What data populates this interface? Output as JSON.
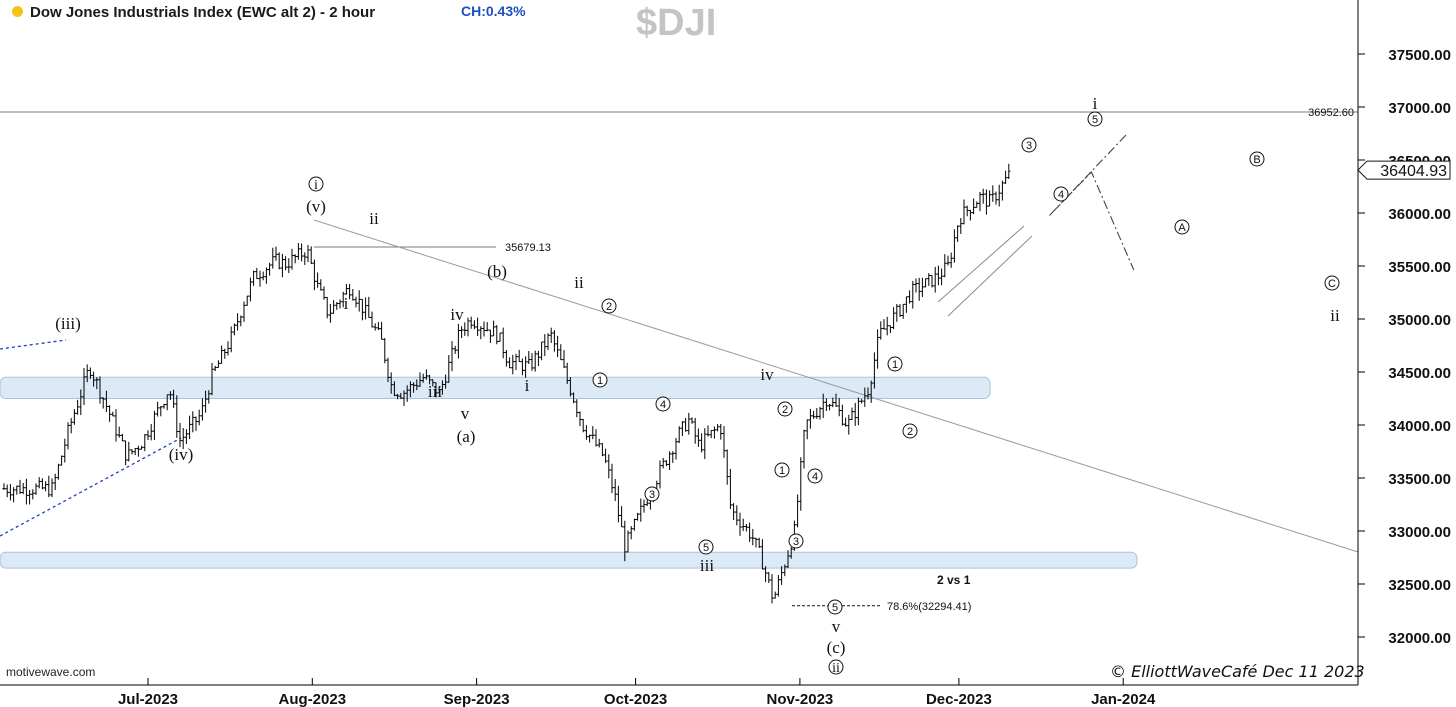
{
  "header": {
    "title": "Dow Jones Industrials Index (EWC alt 2) - 2 hour",
    "change": "CH:0.43%",
    "symbol": "$DJI",
    "dot_color": "#f5c21b"
  },
  "footer": {
    "source": "motivewave.com",
    "copyright": "ElliottWaveCafé Dec 11 2023"
  },
  "chart_data": {
    "type": "line",
    "style": "ohlc-bars",
    "x": [
      "2023-06-13",
      "2023-06-16",
      "2023-06-20",
      "2023-06-23",
      "2023-06-27",
      "2023-06-30",
      "2023-07-05",
      "2023-07-07",
      "2023-07-11",
      "2023-07-13",
      "2023-07-17",
      "2023-07-19",
      "2023-07-21",
      "2023-07-25",
      "2023-07-27",
      "2023-07-31",
      "2023-08-02",
      "2023-08-04",
      "2023-08-08",
      "2023-08-10",
      "2023-08-14",
      "2023-08-16",
      "2023-08-18",
      "2023-08-22",
      "2023-08-25",
      "2023-08-29",
      "2023-08-31",
      "2023-09-05",
      "2023-09-07",
      "2023-09-11",
      "2023-09-13",
      "2023-09-15",
      "2023-09-19",
      "2023-09-21",
      "2023-09-25",
      "2023-09-27",
      "2023-09-29",
      "2023-10-03",
      "2023-10-05",
      "2023-10-09",
      "2023-10-11",
      "2023-10-13",
      "2023-10-17",
      "2023-10-19",
      "2023-10-23",
      "2023-10-25",
      "2023-10-27",
      "2023-10-31",
      "2023-11-02",
      "2023-11-06",
      "2023-11-08",
      "2023-11-10",
      "2023-11-14",
      "2023-11-16",
      "2023-11-20",
      "2023-11-22",
      "2023-11-27",
      "2023-11-29",
      "2023-12-01",
      "2023-12-05",
      "2023-12-07",
      "2023-12-11"
    ],
    "y": [
      33400,
      33950,
      34550,
      34200,
      33700,
      33850,
      34350,
      33850,
      34100,
      34450,
      34850,
      35150,
      35400,
      35550,
      35520,
      35650,
      35300,
      35050,
      35300,
      35150,
      34800,
      34350,
      34300,
      34450,
      34300,
      34900,
      35000,
      34850,
      34600,
      34550,
      34700,
      34850,
      34300,
      34000,
      33700,
      33350,
      32850,
      33300,
      33500,
      33900,
      34050,
      33800,
      34000,
      33200,
      32950,
      32700,
      32350,
      33000,
      34000,
      34250,
      34150,
      34000,
      34350,
      34850,
      35100,
      35250,
      35400,
      35500,
      35950,
      36150,
      36100,
      36400
    ],
    "last_price": "36404.93",
    "ylim": [
      31700,
      37800
    ],
    "y_ticks": [
      "32000.00",
      "32500.00",
      "33000.00",
      "33500.00",
      "34000.00",
      "34500.00",
      "35000.00",
      "35500.00",
      "36000.00",
      "36500.00",
      "37000.00",
      "37500.00"
    ],
    "x_ticks": [
      "Jul-2023",
      "Aug-2023",
      "Sep-2023",
      "Oct-2023",
      "Nov-2023",
      "Dec-2023",
      "Jan-2024"
    ],
    "levels": [
      {
        "label": "36952.60",
        "value": 36952.6
      },
      {
        "label": "35679.13",
        "value": 35679.13
      }
    ],
    "fib": {
      "label": "78.6%(32294.41)",
      "value": 32294.41
    },
    "fib_note": "2 vs 1",
    "zones": [
      {
        "low": 34250,
        "high": 34450
      },
      {
        "low": 32650,
        "high": 32800
      }
    ],
    "projection": [
      {
        "label": "A",
        "date": "2023-12-18",
        "value": 35750
      },
      {
        "label": "B",
        "date": "2023-12-26",
        "value": 36150
      },
      {
        "label": "C",
        "date": "2024-01-03",
        "value": 35150
      }
    ],
    "wave_labels": [
      {
        "text": "(iii)",
        "date": "2023-06-21"
      },
      {
        "text": "(iv)",
        "date": "2023-07-06"
      },
      {
        "text": "(v)",
        "date": "2023-08-01"
      },
      {
        "text": "i",
        "date": "2023-08-01"
      },
      {
        "text": "ii",
        "date": "2023-08-03"
      },
      {
        "text": "i",
        "date": "2023-08-05"
      },
      {
        "text": "iv",
        "date": "2023-08-21"
      },
      {
        "text": "iii",
        "date": "2023-08-18"
      },
      {
        "text": "v",
        "date": "2023-08-23"
      },
      {
        "text": "(a)",
        "date": "2023-08-23"
      },
      {
        "text": "(b)",
        "date": "2023-08-31"
      },
      {
        "text": "i",
        "date": "2023-09-06"
      },
      {
        "text": "ii",
        "date": "2023-09-14"
      },
      {
        "text": "2",
        "date": "2023-09-18"
      },
      {
        "text": "1",
        "date": "2023-09-17"
      },
      {
        "text": "4",
        "date": "2023-09-27"
      },
      {
        "text": "3",
        "date": "2023-09-25"
      },
      {
        "text": "5",
        "date": "2023-10-03"
      },
      {
        "text": "iii",
        "date": "2023-10-03"
      },
      {
        "text": "iv",
        "date": "2023-10-17"
      },
      {
        "text": "2",
        "date": "2023-10-18"
      },
      {
        "text": "1",
        "date": "2023-10-18"
      },
      {
        "text": "4",
        "date": "2023-10-20"
      },
      {
        "text": "3",
        "date": "2023-10-19"
      },
      {
        "text": "5",
        "date": "2023-10-27"
      },
      {
        "text": "v",
        "date": "2023-10-27"
      },
      {
        "text": "(c)",
        "date": "2023-10-27"
      },
      {
        "text": "ii",
        "date": "2023-10-27"
      },
      {
        "text": "1",
        "date": "2023-11-07"
      },
      {
        "text": "2",
        "date": "2023-11-10"
      },
      {
        "text": "3",
        "date": "2023-12-01"
      },
      {
        "text": "4",
        "date": "2023-12-05"
      },
      {
        "text": "5",
        "date": "2023-12-08"
      },
      {
        "text": "i",
        "date": "2023-12-08"
      },
      {
        "text": "A",
        "date": "2023-12-18"
      },
      {
        "text": "B",
        "date": "2023-12-26"
      },
      {
        "text": "C",
        "date": "2024-01-03"
      },
      {
        "text": "ii",
        "date": "2024-01-03"
      }
    ]
  }
}
